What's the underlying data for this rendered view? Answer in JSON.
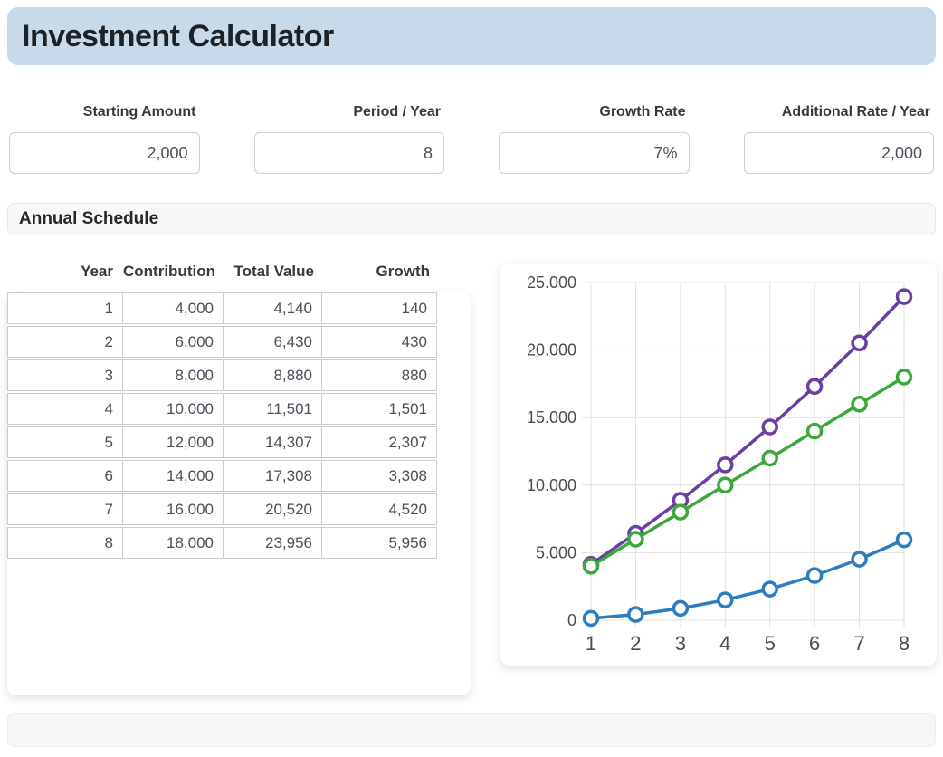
{
  "header": {
    "title": "Investment Calculator"
  },
  "inputs": [
    {
      "label": "Starting Amount",
      "value": "2,000"
    },
    {
      "label": "Period / Year",
      "value": "8"
    },
    {
      "label": "Growth Rate",
      "value": "7%"
    },
    {
      "label": "Additional Rate / Year",
      "value": "2,000"
    }
  ],
  "schedule": {
    "title": "Annual Schedule",
    "columns": [
      "Year",
      "Contribution",
      "Total Value",
      "Growth"
    ],
    "rows": [
      [
        "1",
        "4,000",
        "4,140",
        "140"
      ],
      [
        "2",
        "6,000",
        "6,430",
        "430"
      ],
      [
        "3",
        "8,000",
        "8,880",
        "880"
      ],
      [
        "4",
        "10,000",
        "11,501",
        "1,501"
      ],
      [
        "5",
        "12,000",
        "14,307",
        "2,307"
      ],
      [
        "6",
        "14,000",
        "17,308",
        "3,308"
      ],
      [
        "7",
        "16,000",
        "20,520",
        "4,520"
      ],
      [
        "8",
        "18,000",
        "23,956",
        "5,956"
      ]
    ]
  },
  "chart_data": {
    "type": "line",
    "x": [
      1,
      2,
      3,
      4,
      5,
      6,
      7,
      8
    ],
    "x_tick_labels": [
      "1",
      "2",
      "3",
      "4",
      "5",
      "6",
      "7",
      "8"
    ],
    "ylim": [
      0,
      25000
    ],
    "y_ticks": [
      0,
      5000,
      10000,
      15000,
      20000,
      25000
    ],
    "y_tick_labels": [
      "0",
      "5.000",
      "10.000",
      "15.000",
      "20.000",
      "25.000"
    ],
    "grid": true,
    "legend": "none",
    "title": "",
    "xlabel": "",
    "ylabel": "",
    "series": [
      {
        "name": "Total Value",
        "color": "#693fa5",
        "values": [
          4140,
          6430,
          8880,
          11501,
          14307,
          17308,
          20520,
          23956
        ]
      },
      {
        "name": "Contribution",
        "color": "#3aa83a",
        "values": [
          4000,
          6000,
          8000,
          10000,
          12000,
          14000,
          16000,
          18000
        ]
      },
      {
        "name": "Growth",
        "color": "#2d7dbe",
        "values": [
          140,
          430,
          880,
          1501,
          2307,
          3308,
          4520,
          5956
        ]
      }
    ]
  },
  "colors": {
    "header_bg": "#c8daea",
    "gridline": "#e1e1e1",
    "tick_text": "#4a4d52",
    "marker_fill": "#ffffff"
  }
}
